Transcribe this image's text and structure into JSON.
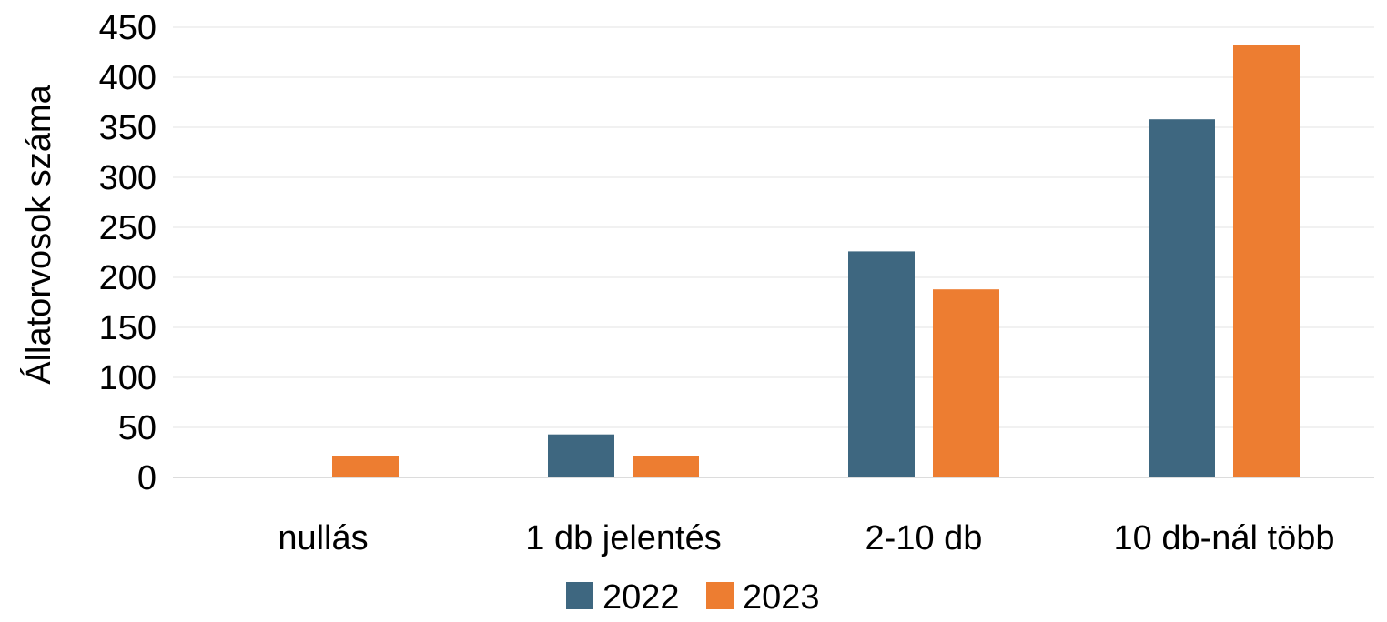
{
  "chart_data": {
    "type": "bar",
    "title": "",
    "xlabel": "",
    "ylabel": "Állatorvosok száma",
    "categories": [
      "nullás",
      "1 db jelentés",
      "2-10 db",
      "10 db-nál több"
    ],
    "series": [
      {
        "name": "2022",
        "color": "#3e6780",
        "values": [
          0,
          43,
          226,
          358
        ]
      },
      {
        "name": "2023",
        "color": "#ed7d31",
        "values": [
          21,
          21,
          188,
          432
        ]
      }
    ],
    "ylim": [
      0,
      450
    ],
    "yticks": [
      "0",
      "50",
      "100",
      "150",
      "200",
      "250",
      "300",
      "350",
      "400",
      "450"
    ],
    "grid": true,
    "legend_position": "bottom"
  }
}
